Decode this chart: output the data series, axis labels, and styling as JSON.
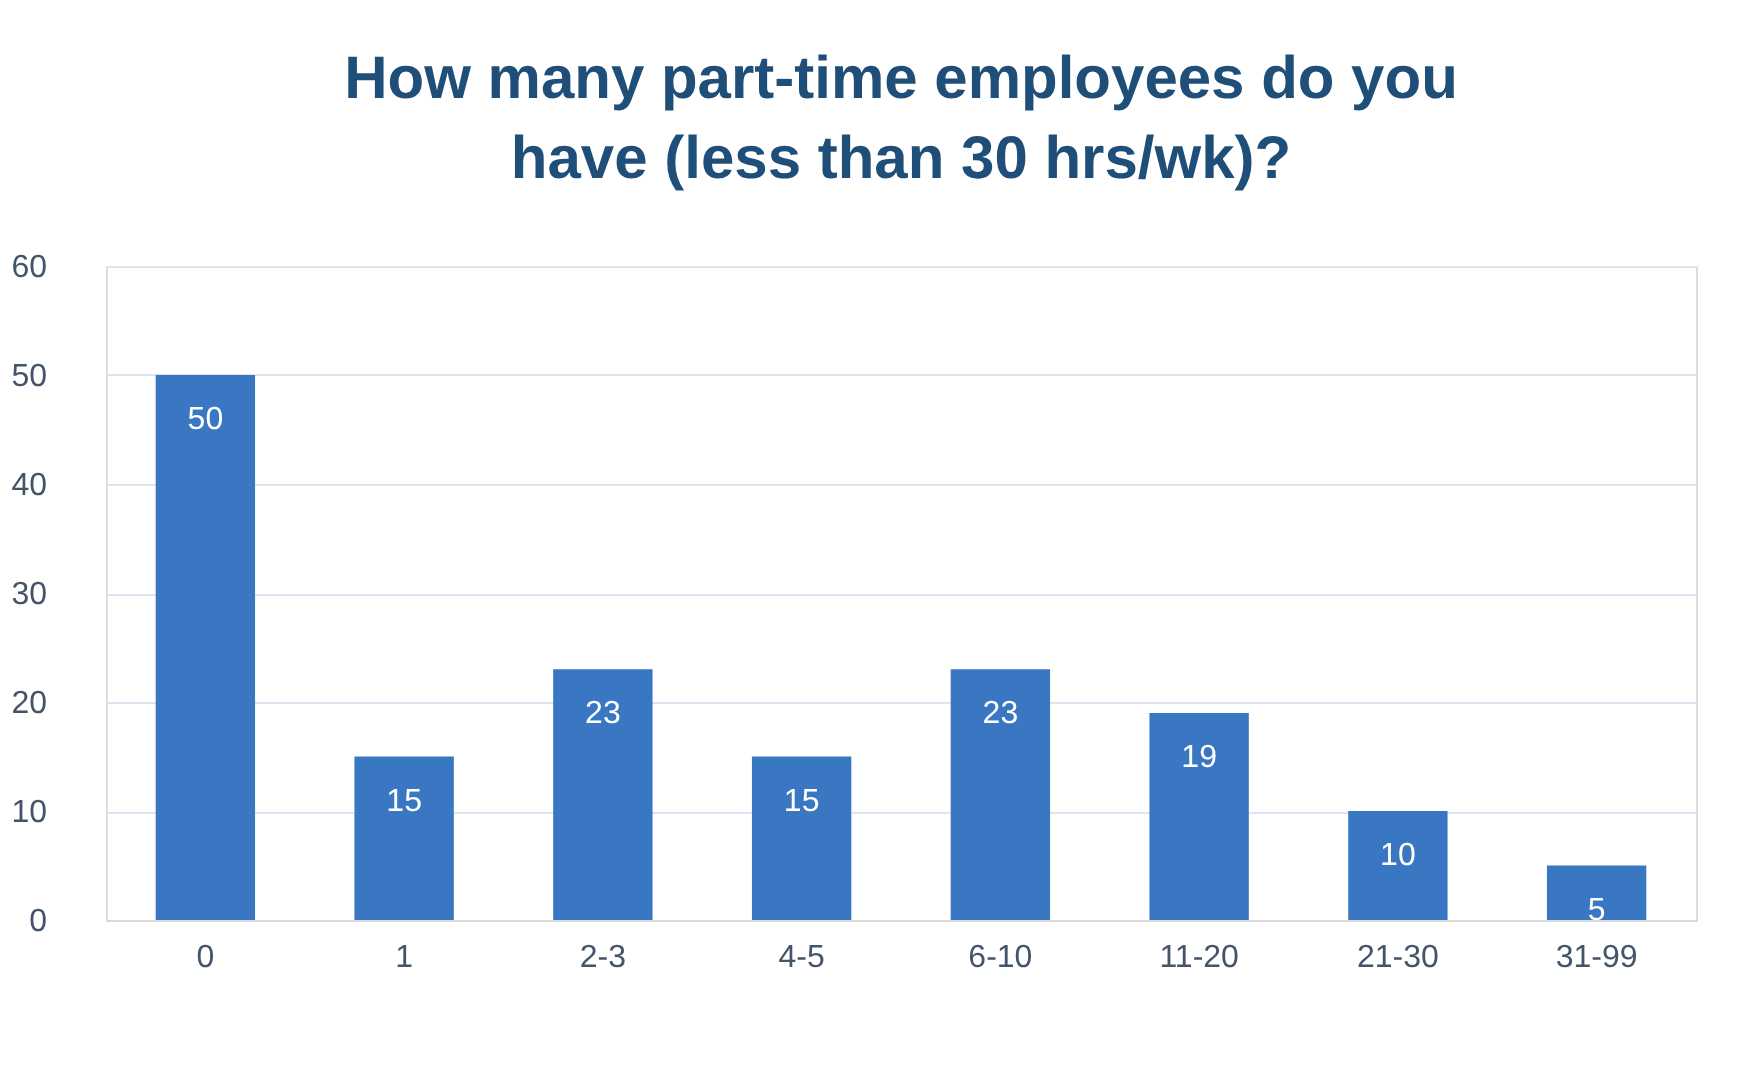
{
  "chart_data": {
    "type": "bar",
    "title": [
      "How many part-time employees do you",
      "have (less than 30 hrs/wk)?"
    ],
    "categories": [
      "0",
      "1",
      "2-3",
      "4-5",
      "6-10",
      "11-20",
      "21-30",
      "31-99"
    ],
    "values": [
      50,
      15,
      23,
      15,
      23,
      19,
      10,
      5
    ],
    "color": "#3a77c2",
    "ylim": [
      0,
      60
    ],
    "yticks": [
      0,
      10,
      20,
      30,
      40,
      50,
      60
    ],
    "grid": "y",
    "data_labels": true
  }
}
